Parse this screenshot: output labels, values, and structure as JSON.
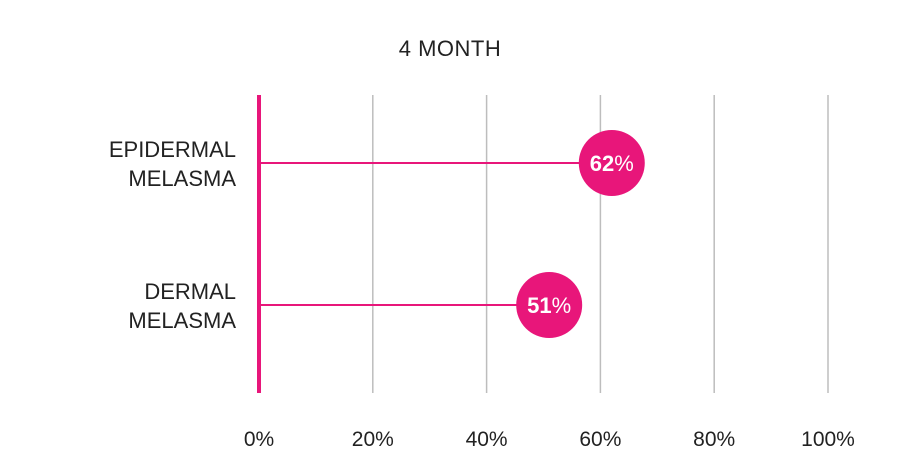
{
  "chart_data": {
    "type": "lollipop-bar",
    "title": "4 MONTH",
    "categories": [
      "EPIDERMAL MELASMA",
      "DERMAL MELASMA"
    ],
    "category_lines": [
      [
        "EPIDERMAL",
        "MELASMA"
      ],
      [
        "DERMAL",
        "MELASMA"
      ]
    ],
    "values": [
      62,
      51
    ],
    "value_labels": [
      {
        "number": "62",
        "unit": "%"
      },
      {
        "number": "51",
        "unit": "%"
      }
    ],
    "xlim": [
      0,
      100
    ],
    "x_ticks": [
      0,
      20,
      40,
      60,
      80,
      100
    ],
    "x_tick_labels": [
      "0%",
      "20%",
      "40%",
      "60%",
      "80%",
      "100%"
    ],
    "grid": true,
    "colors": {
      "accent": "#E8167A",
      "grid": "#BDBDBD",
      "text": "#222222",
      "label_text": "#ffffff"
    }
  }
}
